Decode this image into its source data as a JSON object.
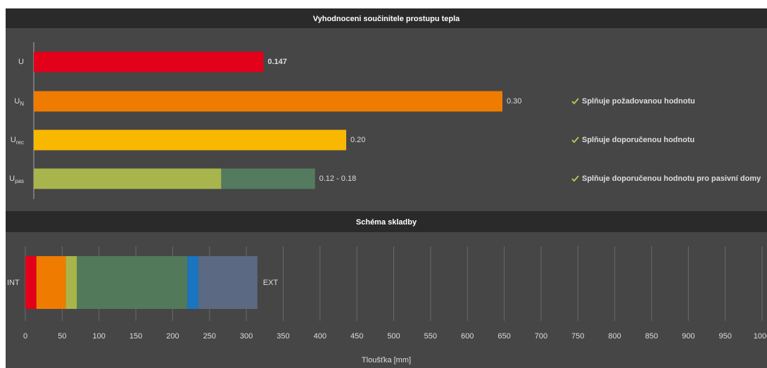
{
  "chart_data": [
    {
      "type": "hbar_range",
      "title": "Vyhodnoceni součinitele prostupu tepla",
      "categories": [
        "U",
        "U",
        "U",
        "U"
      ],
      "category_subscripts": [
        null,
        "N",
        "rec",
        "pas"
      ],
      "values": [
        0.147,
        0.3,
        0.2,
        0.18
      ],
      "values_low": [
        null,
        null,
        null,
        0.12
      ],
      "value_labels": [
        "0.147",
        "0.30",
        "0.20",
        "0.12 - 0.18"
      ],
      "colors": [
        "#e2001a",
        "#ef7c00",
        "#f9b800",
        "#557b5e"
      ],
      "low_color": "#a8b54c",
      "statuses": [
        null,
        "Splňuje požadovanou hodnotu",
        "Splňuje doporučenou hodnotu",
        "Splňuje doporučenou hodnotu pro pasivní domy"
      ],
      "status_color": "#a9c94a",
      "xlim": [
        0,
        0.4
      ]
    },
    {
      "type": "stacked_hbar",
      "title": "Schéma skladby",
      "values": [
        15,
        40,
        15,
        150,
        15,
        80
      ],
      "colors": [
        "#e2001a",
        "#ef7c00",
        "#a9b54a",
        "#527a5a",
        "#1a74c0",
        "#5b6a82"
      ],
      "start_label": "INT",
      "end_label": "EXT",
      "xlabel": "Tloušťka [mm]",
      "xlim": [
        0,
        1000
      ],
      "xticks": [
        0,
        50,
        100,
        150,
        200,
        250,
        300,
        350,
        400,
        450,
        500,
        550,
        600,
        650,
        700,
        750,
        800,
        850,
        900,
        950,
        1000
      ],
      "grid": true
    }
  ]
}
